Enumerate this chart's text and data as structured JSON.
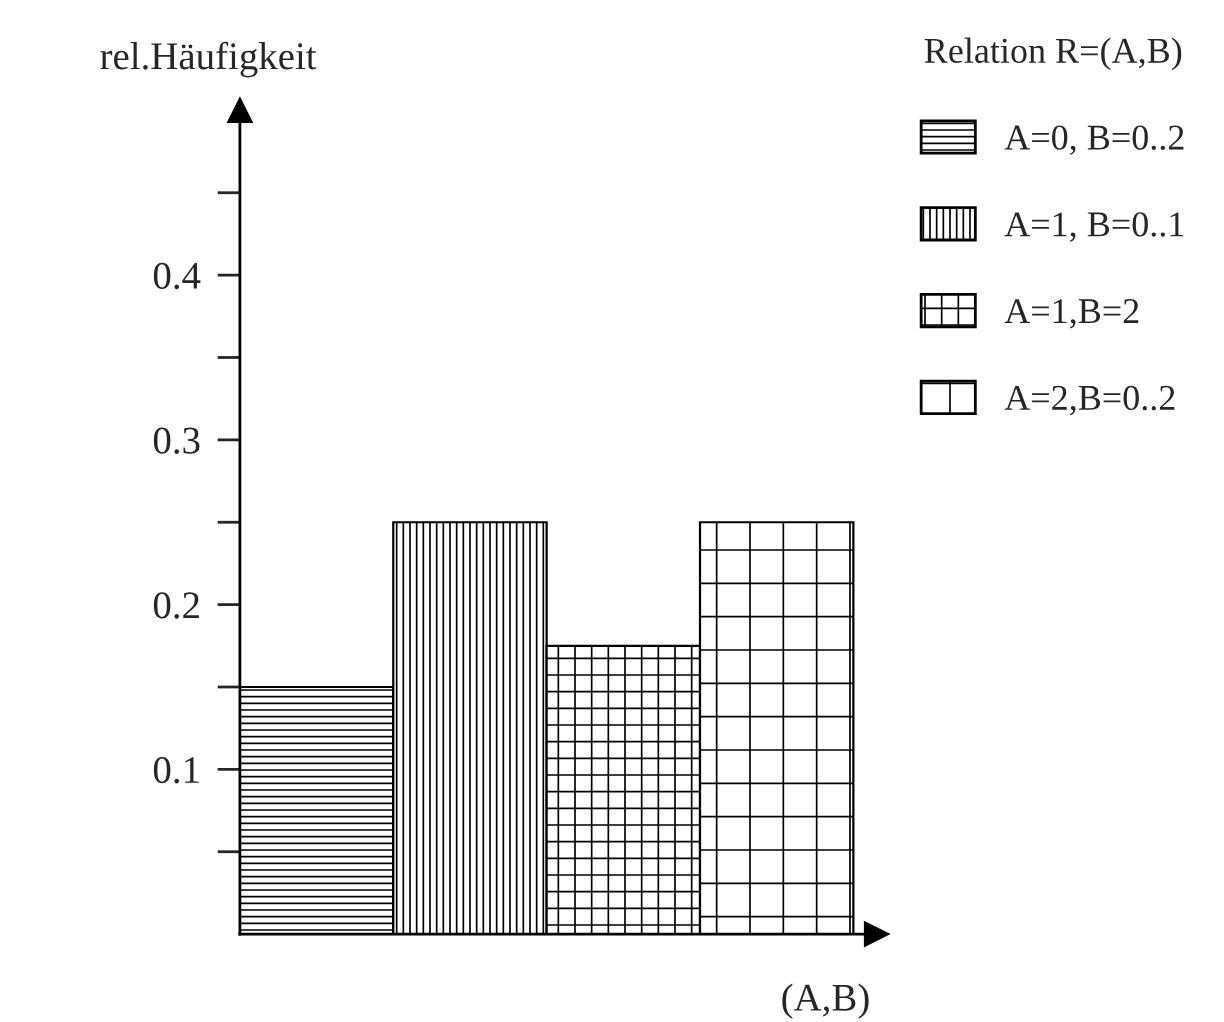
{
  "chart_data": {
    "type": "bar",
    "xlabel": "(A,B)",
    "ylabel": "rel.Häufigkeit",
    "legend_title": "Relation R=(A,B)",
    "legend": "top right",
    "categories": [
      null,
      null,
      null,
      null
    ],
    "series": [
      {
        "name": "A=0, B=0..2",
        "color": "#000000",
        "values": [
          0.15,
          null,
          null,
          null
        ]
      },
      {
        "name": "A=1, B=0..1",
        "color": "#000000",
        "values": [
          null,
          0.25,
          null,
          null
        ]
      },
      {
        "name": "A=1,B=2",
        "color": "#000000",
        "values": [
          null,
          null,
          0.175,
          null
        ]
      },
      {
        "name": "A=2,B=0..2",
        "color": "#000000",
        "values": [
          null,
          null,
          null,
          0.25
        ]
      }
    ],
    "ylim": [
      0,
      0.5
    ],
    "yticks": [
      {
        "value": 0.05,
        "label": null
      },
      0.1,
      {
        "value": 0.15,
        "label": null
      },
      0.2,
      {
        "value": 0.25,
        "label": null
      },
      0.3,
      {
        "value": 0.35,
        "label": null
      },
      0.4,
      {
        "value": 0.45,
        "label": null
      }
    ],
    "tick_labels": "y",
    "grid": false
  }
}
